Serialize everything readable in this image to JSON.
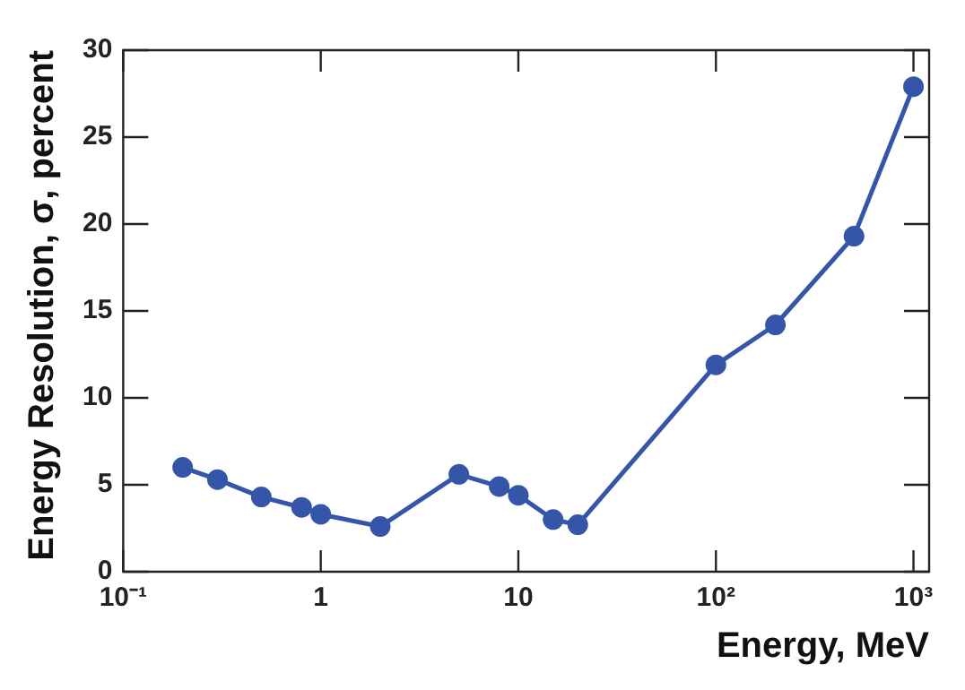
{
  "chart_data": {
    "type": "line",
    "xlabel": "Energy, MeV",
    "ylabel": "Energy Resolution, σ, percent",
    "x": [
      0.2,
      0.3,
      0.5,
      0.8,
      1,
      2,
      5,
      8,
      10,
      15,
      20,
      100,
      200,
      500,
      1000
    ],
    "series": [
      {
        "color": "#3555a8",
        "values": [
          6.0,
          5.3,
          4.3,
          3.7,
          3.3,
          2.6,
          5.6,
          4.9,
          4.4,
          3.0,
          2.7,
          11.9,
          14.2,
          19.3,
          27.9
        ]
      }
    ],
    "log": "x",
    "xlim": [
      0.1,
      1200
    ],
    "xticks": [
      {
        "value": 0.1,
        "label": "10⁻¹"
      },
      1,
      10,
      {
        "value": 100,
        "label": "10²"
      },
      {
        "value": 1000,
        "label": "10³"
      }
    ],
    "ylim": [
      0,
      30
    ],
    "yticks": [
      0,
      5,
      10,
      15,
      20,
      25,
      30
    ],
    "grid": false,
    "legend": false,
    "marker": "circle",
    "line_style": "solid"
  }
}
